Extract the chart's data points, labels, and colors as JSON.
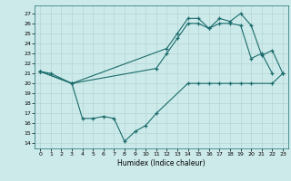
{
  "xlabel": "Humidex (Indice chaleur)",
  "bg_color": "#cdeaea",
  "line_color": "#1a6b6b",
  "grid_color": "#b8d8d8",
  "xlim": [
    -0.5,
    23.5
  ],
  "ylim": [
    13.5,
    27.8
  ],
  "yticks": [
    14,
    15,
    16,
    17,
    18,
    19,
    20,
    21,
    22,
    23,
    24,
    25,
    26,
    27
  ],
  "xticks": [
    0,
    1,
    2,
    3,
    4,
    5,
    6,
    7,
    8,
    9,
    10,
    11,
    12,
    13,
    14,
    15,
    16,
    17,
    18,
    19,
    20,
    21,
    22,
    23
  ],
  "line1_x": [
    0,
    1,
    3,
    4,
    5,
    6,
    7,
    8,
    9,
    10,
    11,
    14,
    15,
    16,
    17,
    18,
    19,
    20,
    22,
    23
  ],
  "line1_y": [
    21.2,
    21.0,
    20.0,
    16.5,
    16.5,
    16.7,
    16.5,
    14.2,
    15.2,
    15.8,
    17.0,
    20.0,
    20.0,
    20.0,
    20.0,
    20.0,
    20.0,
    20.0,
    20.0,
    21.0
  ],
  "line2_x": [
    0,
    3,
    11,
    12,
    13,
    14,
    15,
    16,
    17,
    18,
    19,
    20,
    21,
    22
  ],
  "line2_y": [
    21.2,
    20.0,
    21.5,
    23.0,
    24.5,
    26.0,
    26.0,
    25.5,
    26.0,
    26.0,
    25.8,
    22.5,
    23.0,
    21.0
  ],
  "line3_x": [
    0,
    3,
    12,
    13,
    14,
    15,
    16,
    17,
    18,
    19,
    20,
    21,
    22,
    23
  ],
  "line3_y": [
    21.2,
    20.0,
    23.5,
    25.0,
    26.5,
    26.5,
    25.5,
    26.5,
    26.2,
    27.0,
    25.8,
    22.8,
    23.3,
    21.0
  ]
}
